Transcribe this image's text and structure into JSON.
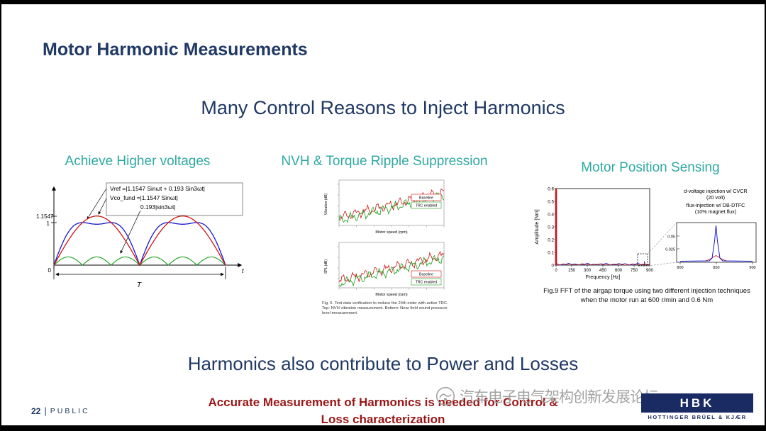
{
  "slide": {
    "title": "Motor Harmonic Measurements",
    "subtitle": "Many Control Reasons to Inject Harmonics",
    "column_headers": [
      "Achieve Higher voltages",
      "NVH & Torque Ripple Suppression",
      "Motor Position Sensing"
    ],
    "bottom_heading": "Harmonics also contribute to Power and Losses",
    "conclusion": {
      "line1": "Accurate Measurement of Harmonics is needed for Control &",
      "line2": "Loss characterization"
    },
    "watermark_text": "汽车电子电气架构创新发展论坛",
    "footer": {
      "page_number": "22",
      "separator": "|",
      "classification": "PUBLIC"
    },
    "logo": {
      "brand": "HBK",
      "tagline": "HOTTINGER BRÜEL & KJÆR"
    }
  },
  "colors": {
    "heading_navy": "#1f3864",
    "accent_teal": "#2fa9a2",
    "conclusion_red": "#9a1515",
    "logo_navy": "#1a2a63",
    "series_blue": "#1818cc",
    "series_red": "#cc1414",
    "series_green": "#1a9e1a"
  },
  "chart_data": [
    {
      "id": "third-harmonic-injection-waveforms",
      "type": "line",
      "x_axis_label": "t",
      "period_label": "T",
      "y_ticks": [
        "1.1547",
        "1",
        "0"
      ],
      "legend_lines": [
        "Vref =|1.1547 Sinωt + 0.193 Sin3ωt|",
        "Vco_fund =|1.1547 Sinωt|",
        "0.193|sin3ωt|"
      ],
      "series": [
        {
          "name": "Vref = |1.1547 sin(ωt) + 0.193 sin(3ωt)|",
          "amp1": 1.1547,
          "amp3": 0.193,
          "color": "#1818cc"
        },
        {
          "name": "Vco_fund = |1.1547 sin(ωt)|",
          "amp1": 1.1547,
          "amp3": 0,
          "color": "#cc1414"
        },
        {
          "name": "0.193 |sin(3ωt)|",
          "amp1": 0,
          "amp3": 0.193,
          "color": "#1a9e1a"
        }
      ]
    },
    {
      "id": "nvh-torque-ripple-suppression",
      "type": "line",
      "panels": [
        {
          "ylabel": "Vibration (dB)",
          "xlabel": "Motor speed (rpm)"
        },
        {
          "ylabel": "SPL (dB)",
          "xlabel": "Motor speed (rpm)"
        }
      ],
      "legend": [
        {
          "label": "Baseline",
          "color": "#cc1414"
        },
        {
          "label": "TRC enabled",
          "color": "#1a9e1a"
        }
      ],
      "caption_lines": [
        "Fig. 6. Test data verification to reduce the 24th order with active TRC.",
        "Top: NVH vibration measurement. Bottom: Near field sound pressure",
        "level measurement."
      ]
    },
    {
      "id": "fft-airgap-torque",
      "type": "stem",
      "ylabel": "Amplitude [Nm]",
      "xlabel": "Frequency [Hz]",
      "ylim": [
        0,
        0.6
      ],
      "y_ticks": [
        "0",
        "0.1",
        "0.2",
        "0.3",
        "0.4",
        "0.5",
        "0.6"
      ],
      "x_ticks": [
        "0",
        "150",
        "300",
        "450",
        "600",
        "750",
        "900"
      ],
      "legend": [
        {
          "line1": "d-voltage injection w/ CVCR",
          "line2": "(20 volt)",
          "color": "#1818cc"
        },
        {
          "line1": "flux-injection w/ DB-DTFC",
          "line2": "(10% magnet flux)",
          "color": "#cc1414"
        }
      ],
      "series": [
        {
          "name": "d-voltage injection w/ CVCR (20 volt)",
          "color": "#1818cc",
          "peaks": [
            {
              "freq": 0,
              "amp": 0.57
            },
            {
              "freq": 850,
              "amp": 0.03
            }
          ]
        },
        {
          "name": "flux-injection w/ DB-DTFC (10% magnet flux)",
          "color": "#cc1414",
          "peaks": [
            {
              "freq": 0,
              "amp": 0.6
            },
            {
              "freq": 850,
              "amp": 0.02
            }
          ]
        }
      ],
      "inset": {
        "x_ticks": [
          "800",
          "850",
          "900"
        ],
        "y_ticks": [
          "0.05",
          "0.025"
        ],
        "peak_freq": "850"
      },
      "caption_lines": [
        "Fig.9 FFT of the airgap torque using two different injection techniques",
        "when the motor run at 600 r/min and 0.6 Nm"
      ]
    }
  ]
}
